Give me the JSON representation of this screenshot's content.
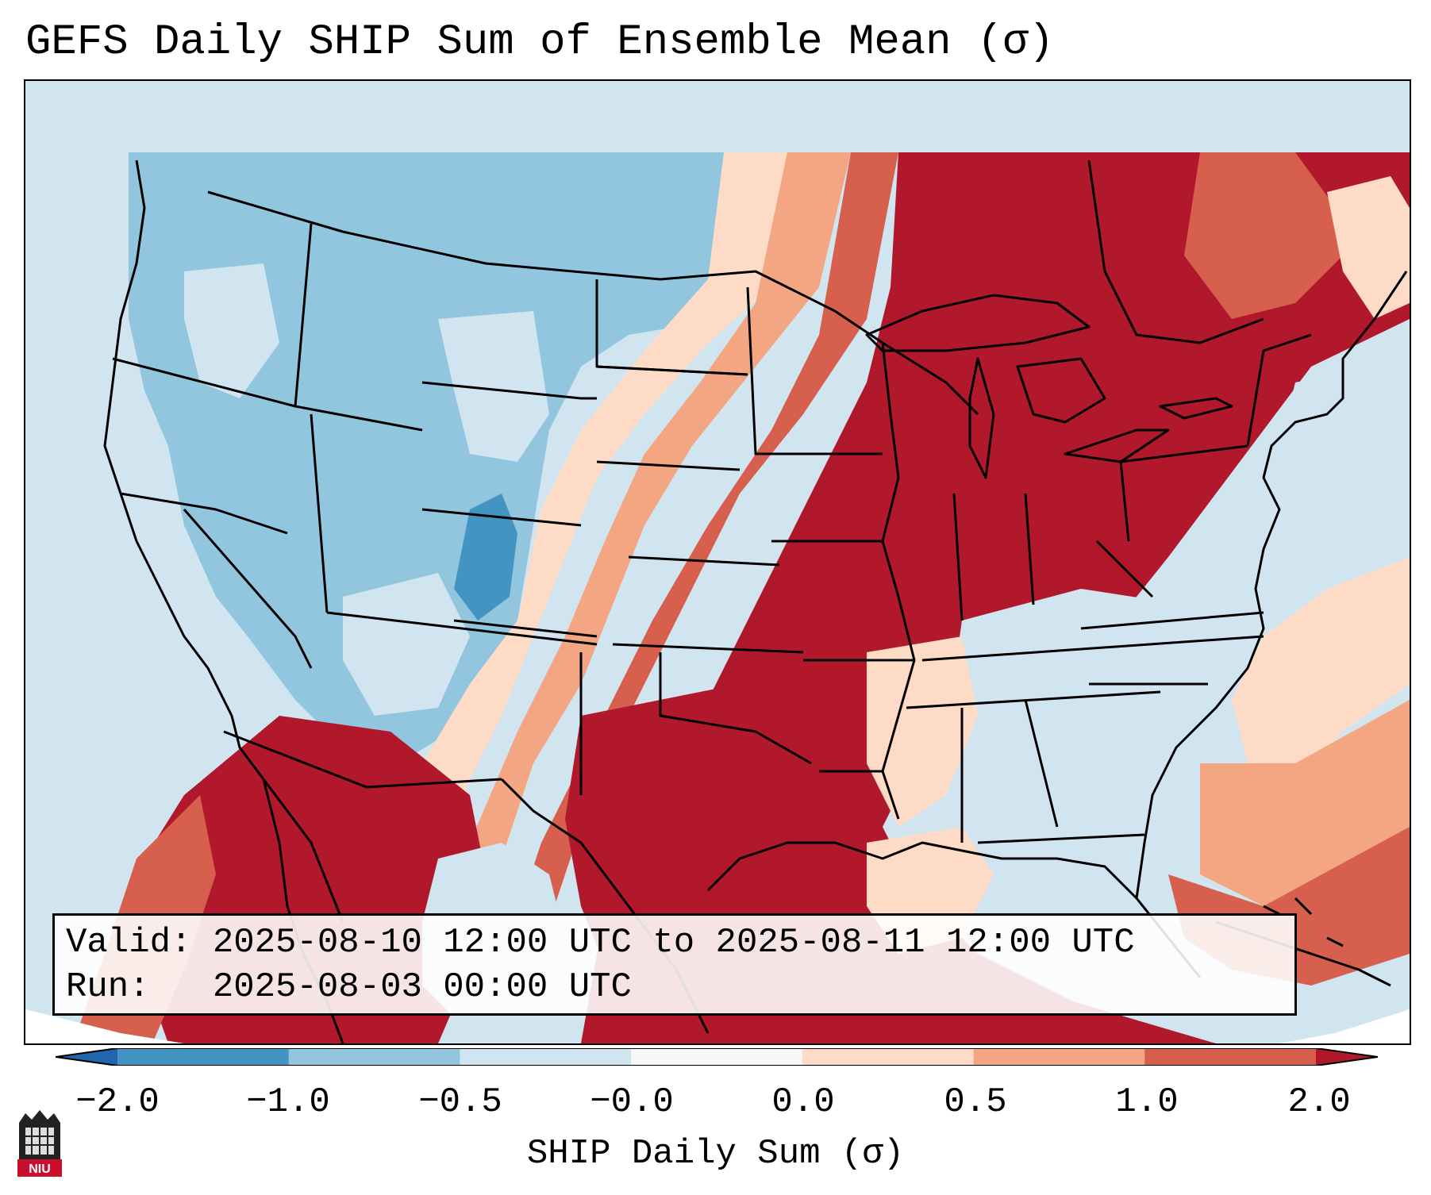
{
  "title": "GEFS Daily SHIP Sum of Ensemble Mean (σ)",
  "info": {
    "valid_line": "Valid: 2025-08-10 12:00 UTC to 2025-08-11 12:00 UTC",
    "run_line": "Run:   2025-08-03 00:00 UTC"
  },
  "colorbar": {
    "label": "SHIP Daily Sum (σ)",
    "bins": [
      {
        "from": -2.0,
        "to": -1.0,
        "color": "#4393c3"
      },
      {
        "from": -1.0,
        "to": -0.5,
        "color": "#92c5de"
      },
      {
        "from": -0.5,
        "to": -0.0,
        "color": "#d1e5f0"
      },
      {
        "from": 0.0,
        "to": 0.0,
        "color": "#f7f7f7"
      },
      {
        "from": 0.0,
        "to": 0.5,
        "color": "#fddbc7"
      },
      {
        "from": 0.5,
        "to": 1.0,
        "color": "#f4a582"
      },
      {
        "from": 1.0,
        "to": 2.0,
        "color": "#d6604d"
      }
    ],
    "under_color": "#2166ac",
    "over_color": "#b2182b",
    "ticks": [
      "−2.0",
      "−1.0",
      "−0.5",
      "−0.0",
      "0.0",
      "0.5",
      "1.0",
      "2.0"
    ]
  },
  "map": {
    "region": "Contiguous United States",
    "level_colors": {
      "-2": "#4393c3",
      "-1": "#92c5de",
      "0": "#d1e5f0",
      "1": "#fddbc7",
      "2": "#f4a582",
      "3": "#d6604d",
      "4": "#b2182b"
    }
  },
  "logo": {
    "text": "NIU",
    "icon": "niu-logo-icon"
  }
}
